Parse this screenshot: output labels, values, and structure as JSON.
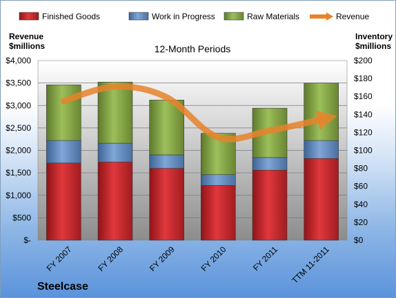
{
  "chart_data": {
    "type": "bar",
    "stacked": true,
    "subtitle": "12-Month Periods",
    "company": "Steelcase",
    "left_axis_title": [
      "Revenue",
      "$millions"
    ],
    "right_axis_title": [
      "Inventory",
      "$millions"
    ],
    "categories": [
      "FY 2007",
      "FY 2008",
      "FY 2009",
      "FY 2010",
      "FY 2011",
      "TTM 11-2011"
    ],
    "left_ticks": [
      "$-",
      "$500",
      "$1,000",
      "$1,500",
      "$2,000",
      "$2,500",
      "$3,000",
      "$3,500",
      "$4,000"
    ],
    "right_ticks": [
      "$0",
      "$20",
      "$40",
      "$60",
      "$80",
      "$100",
      "$120",
      "$140",
      "$160",
      "$180",
      "$200"
    ],
    "left_ylim": [
      0,
      4000
    ],
    "right_ylim": [
      0,
      200
    ],
    "legend_position": "top",
    "series": [
      {
        "name": "Finished Goods",
        "axis": "right",
        "color": "#c0282c",
        "values": [
          86,
          87,
          80,
          61,
          78,
          91
        ]
      },
      {
        "name": "Work in Progress",
        "axis": "right",
        "color": "#4f81bd",
        "values": [
          25,
          21,
          15,
          12,
          14,
          20
        ]
      },
      {
        "name": "Raw Materials",
        "axis": "right",
        "color": "#7fa13c",
        "values": [
          62,
          68,
          61,
          46,
          55,
          64
        ]
      },
      {
        "name": "Revenue",
        "axis": "left",
        "type": "line",
        "color": "#e8832a",
        "values": [
          3100,
          3420,
          3180,
          2290,
          2440,
          2690
        ]
      }
    ]
  }
}
